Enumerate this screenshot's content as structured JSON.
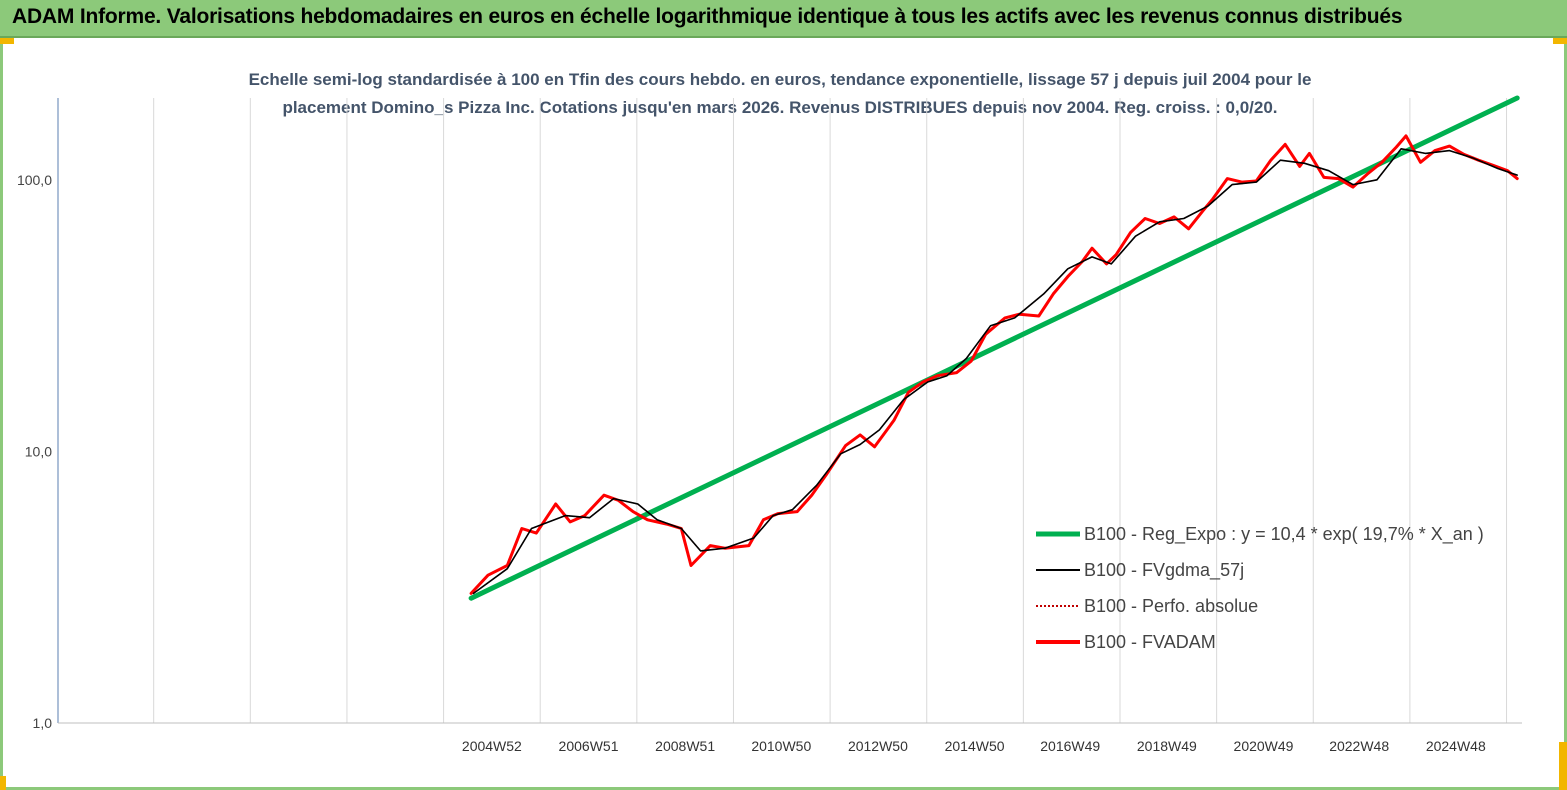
{
  "header": {
    "title": "ADAM Informe. Valorisations hebdomadaires en euros en échelle logarithmique identique à tous les actifs avec les revenus connus distribués"
  },
  "colors": {
    "banner": "#8cc97a",
    "regression": "#00b050",
    "smoothing": "#000000",
    "perf_absolue": "#c00000",
    "fvadam": "#ff0000"
  },
  "chart_data": {
    "type": "line",
    "title_line1": "Echelle semi-log standardisée à 100 en Tfin des cours hebdo. en euros, tendance exponentielle, lissage 57 j depuis juil 2004 pour le",
    "title_line2": "placement Domino_s Pizza Inc. Cotations jusqu'en mars 2026. Revenus DISTRIBUES depuis nov 2004. Reg. croiss. : 0,0/20.",
    "y_scale": "log",
    "ylim": [
      1,
      200
    ],
    "y_ticks": [
      {
        "value": 1,
        "label": "1,0"
      },
      {
        "value": 10,
        "label": "10,0"
      },
      {
        "value": 100,
        "label": "100,0"
      }
    ],
    "x_range": [
      1996.0,
      2026.3
    ],
    "x_ticks": [
      "2004W52",
      "2006W51",
      "2008W51",
      "2010W50",
      "2012W50",
      "2014W50",
      "2016W49",
      "2018W49",
      "2020W49",
      "2022W48",
      "2024W48"
    ],
    "x_tick_years": [
      2004.98,
      2006.98,
      2008.98,
      2010.97,
      2012.97,
      2014.97,
      2016.95,
      2018.95,
      2020.95,
      2022.93,
      2024.93
    ],
    "grid": "vertical",
    "legend_position": "bottom-right",
    "series": [
      {
        "name": "B100 - Reg_Expo : y = 10,4 * exp( 19,7% *  X_an )",
        "kind": "regression",
        "x": [
          2004.55,
          2026.2
        ],
        "y": [
          2.88,
          200
        ]
      },
      {
        "name": "B100 - FVgdma_57j",
        "kind": "smoothed",
        "x": [
          2004.6,
          2005.3,
          2005.8,
          2006.5,
          2007.0,
          2007.5,
          2008.0,
          2008.4,
          2008.9,
          2009.3,
          2009.8,
          2010.4,
          2010.8,
          2011.2,
          2011.7,
          2012.2,
          2012.6,
          2013.0,
          2013.5,
          2014.0,
          2014.4,
          2014.8,
          2015.3,
          2015.8,
          2016.4,
          2016.9,
          2017.4,
          2017.8,
          2018.3,
          2018.8,
          2019.3,
          2019.8,
          2020.3,
          2020.8,
          2021.3,
          2021.8,
          2022.3,
          2022.8,
          2023.3,
          2023.8,
          2024.3,
          2024.8,
          2025.3,
          2025.8,
          2026.2
        ],
        "y": [
          3.0,
          3.7,
          5.2,
          5.8,
          5.7,
          6.7,
          6.4,
          5.6,
          5.2,
          4.3,
          4.4,
          4.8,
          5.8,
          6.1,
          7.5,
          9.8,
          10.6,
          12.0,
          15.5,
          18.0,
          19.0,
          22.0,
          29.0,
          31.0,
          38.0,
          47.0,
          52.0,
          49.0,
          62.0,
          70.0,
          72.0,
          80.0,
          96.0,
          98.0,
          118.0,
          115.0,
          108.0,
          96.0,
          100.0,
          130.0,
          125.0,
          128.0,
          120.0,
          110.0,
          104.0
        ]
      },
      {
        "name": "B100 - Perfo. absolue",
        "kind": "dotted",
        "x": [
          2004.6,
          2005.3,
          2005.8,
          2006.5,
          2007.0,
          2007.5,
          2008.0,
          2008.4,
          2008.9,
          2009.3,
          2009.8,
          2010.4,
          2010.8,
          2011.2,
          2011.7,
          2012.2,
          2012.6,
          2013.0,
          2013.5,
          2014.0,
          2014.4,
          2014.8,
          2015.3,
          2015.8,
          2016.4,
          2016.9,
          2017.4,
          2017.8,
          2018.3,
          2018.8,
          2019.3,
          2019.8,
          2020.3,
          2020.8,
          2021.3,
          2021.8,
          2022.3,
          2022.8,
          2023.3,
          2023.8,
          2024.3,
          2024.8,
          2025.3,
          2025.8,
          2026.2
        ],
        "y": [
          3.0,
          3.7,
          5.2,
          5.8,
          5.7,
          6.7,
          6.4,
          5.6,
          5.2,
          4.3,
          4.4,
          4.8,
          5.8,
          6.1,
          7.5,
          9.8,
          10.6,
          12.0,
          15.5,
          18.0,
          19.0,
          22.0,
          29.0,
          31.0,
          38.0,
          47.0,
          52.0,
          49.0,
          62.0,
          70.0,
          72.0,
          80.0,
          96.0,
          98.0,
          118.0,
          115.0,
          108.0,
          96.0,
          100.0,
          130.0,
          125.0,
          128.0,
          120.0,
          110.0,
          104.0
        ]
      },
      {
        "name": "B100 - FVADAM",
        "kind": "raw",
        "x": [
          2004.55,
          2004.9,
          2005.3,
          2005.6,
          2005.9,
          2006.3,
          2006.6,
          2006.9,
          2007.3,
          2007.6,
          2007.9,
          2008.2,
          2008.6,
          2008.9,
          2009.1,
          2009.5,
          2009.8,
          2010.3,
          2010.6,
          2010.9,
          2011.3,
          2011.6,
          2011.9,
          2012.3,
          2012.6,
          2012.9,
          2013.3,
          2013.6,
          2013.9,
          2014.2,
          2014.6,
          2014.9,
          2015.2,
          2015.6,
          2015.9,
          2016.3,
          2016.6,
          2016.9,
          2017.2,
          2017.4,
          2017.7,
          2017.9,
          2018.2,
          2018.5,
          2018.8,
          2019.1,
          2019.4,
          2019.7,
          2019.9,
          2020.2,
          2020.5,
          2020.8,
          2021.1,
          2021.4,
          2021.7,
          2021.9,
          2022.2,
          2022.5,
          2022.8,
          2023.1,
          2023.4,
          2023.7,
          2023.9,
          2024.2,
          2024.5,
          2024.8,
          2025.1,
          2025.4,
          2025.7,
          2026.0,
          2026.2
        ],
        "y": [
          3.0,
          3.5,
          3.8,
          5.2,
          5.0,
          6.4,
          5.5,
          5.8,
          6.9,
          6.6,
          6.0,
          5.6,
          5.4,
          5.2,
          3.8,
          4.5,
          4.4,
          4.5,
          5.6,
          5.9,
          6.0,
          6.9,
          8.2,
          10.5,
          11.5,
          10.4,
          13.0,
          16.5,
          18.0,
          19.0,
          19.5,
          21.5,
          27.0,
          31.0,
          32.0,
          31.5,
          38.0,
          44.0,
          50.0,
          56.0,
          49.0,
          53.0,
          64.0,
          72.0,
          69.0,
          73.0,
          66.0,
          77.0,
          85.0,
          101.0,
          98.0,
          99.0,
          118.0,
          135.0,
          112.0,
          125.0,
          102.0,
          101.0,
          94.0,
          105.0,
          116.0,
          132.0,
          145.0,
          116.0,
          128.0,
          133.0,
          124.0,
          118.0,
          113.0,
          108.0,
          101.0
        ]
      }
    ]
  }
}
